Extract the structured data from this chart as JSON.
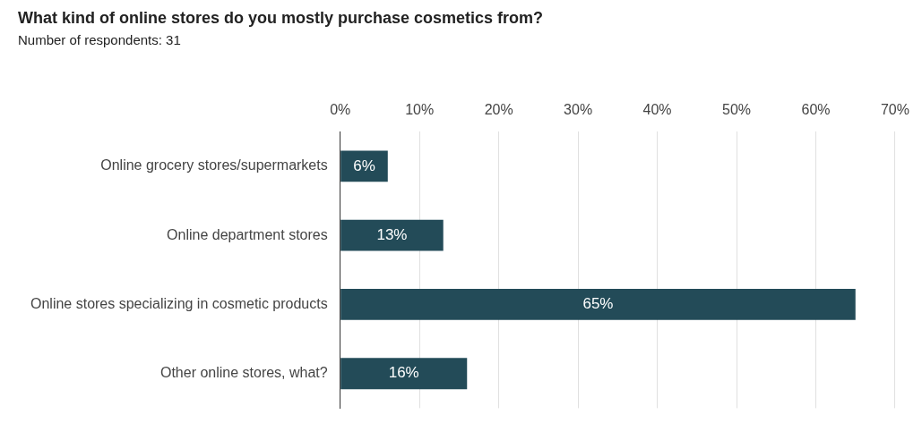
{
  "chart_data": {
    "type": "bar",
    "orientation": "horizontal",
    "title": "What kind of online stores do you mostly purchase cosmetics from?",
    "subtitle": "Number of respondents: 31",
    "categories": [
      "Online grocery stores/supermarkets",
      "Online department stores",
      "Online stores specializing in cosmetic products",
      "Other online stores, what?"
    ],
    "values": [
      6,
      13,
      65,
      16
    ],
    "color": "#234b58",
    "value_labels": [
      "6%",
      "13%",
      "65%",
      "16%"
    ],
    "xlim": [
      0,
      70
    ],
    "xticks": [
      {
        "value": 0,
        "label": "0%"
      },
      {
        "value": 10,
        "label": "10%"
      },
      {
        "value": 20,
        "label": "20%"
      },
      {
        "value": 30,
        "label": "30%"
      },
      {
        "value": 40,
        "label": "40%"
      },
      {
        "value": 50,
        "label": "50%"
      },
      {
        "value": 60,
        "label": "60%"
      },
      {
        "value": 70,
        "label": "70%"
      }
    ],
    "grid": "x",
    "legend": false
  }
}
